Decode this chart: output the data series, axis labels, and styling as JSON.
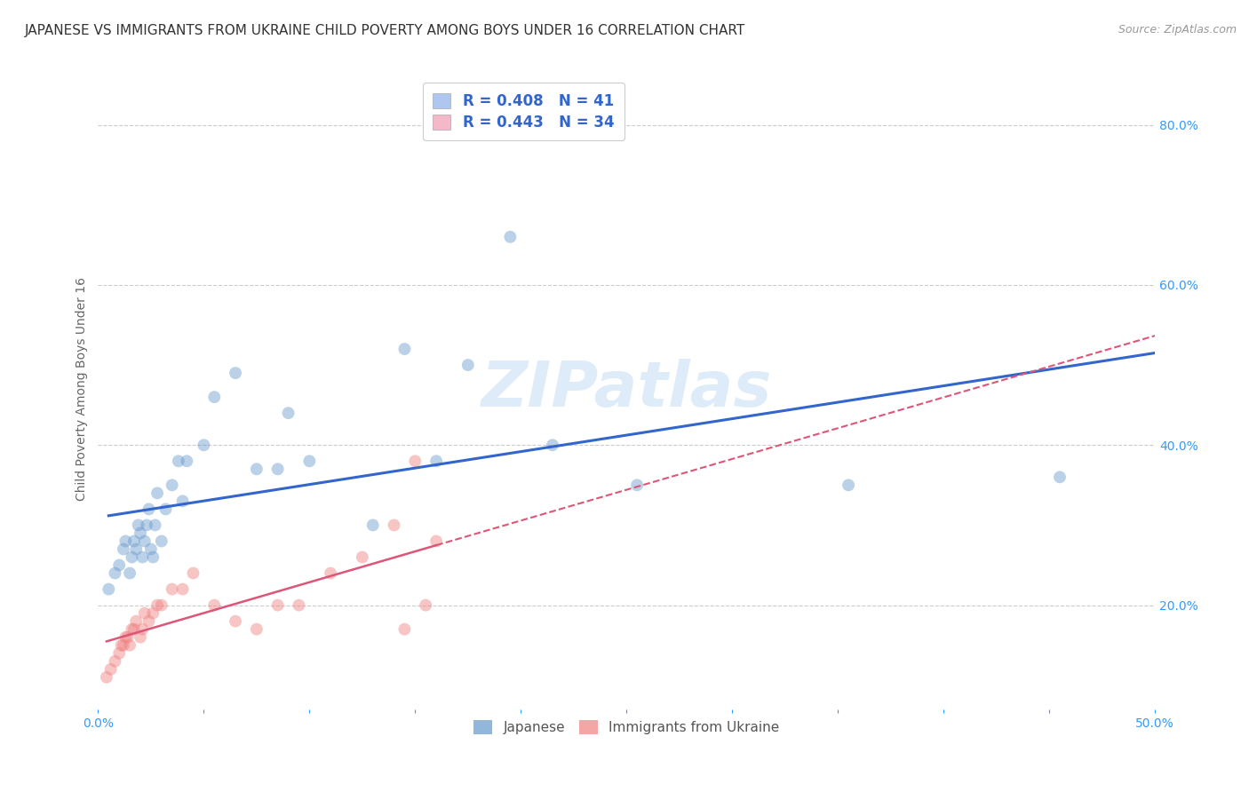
{
  "title": "JAPANESE VS IMMIGRANTS FROM UKRAINE CHILD POVERTY AMONG BOYS UNDER 16 CORRELATION CHART",
  "source": "Source: ZipAtlas.com",
  "ylabel": "Child Poverty Among Boys Under 16",
  "xlim": [
    0.0,
    0.5
  ],
  "ylim": [
    0.07,
    0.87
  ],
  "xticks": [
    0.0,
    0.05,
    0.1,
    0.15,
    0.2,
    0.25,
    0.3,
    0.35,
    0.4,
    0.45,
    0.5
  ],
  "yticks": [
    0.2,
    0.4,
    0.6,
    0.8
  ],
  "watermark": "ZIPatlas",
  "legend_r_entries": [
    {
      "label": "R = 0.408   N = 41",
      "color": "#aec6f0"
    },
    {
      "label": "R = 0.443   N = 34",
      "color": "#f4b8c8"
    }
  ],
  "japanese_x": [
    0.005,
    0.008,
    0.01,
    0.012,
    0.013,
    0.015,
    0.016,
    0.017,
    0.018,
    0.019,
    0.02,
    0.021,
    0.022,
    0.023,
    0.024,
    0.025,
    0.026,
    0.027,
    0.028,
    0.03,
    0.032,
    0.035,
    0.038,
    0.04,
    0.042,
    0.05,
    0.055,
    0.065,
    0.075,
    0.085,
    0.09,
    0.1,
    0.13,
    0.145,
    0.16,
    0.175,
    0.195,
    0.215,
    0.255,
    0.355,
    0.455
  ],
  "japanese_y": [
    0.22,
    0.24,
    0.25,
    0.27,
    0.28,
    0.24,
    0.26,
    0.28,
    0.27,
    0.3,
    0.29,
    0.26,
    0.28,
    0.3,
    0.32,
    0.27,
    0.26,
    0.3,
    0.34,
    0.28,
    0.32,
    0.35,
    0.38,
    0.33,
    0.38,
    0.4,
    0.46,
    0.49,
    0.37,
    0.37,
    0.44,
    0.38,
    0.3,
    0.52,
    0.38,
    0.5,
    0.66,
    0.4,
    0.35,
    0.35,
    0.36
  ],
  "ukraine_x": [
    0.004,
    0.006,
    0.008,
    0.01,
    0.011,
    0.012,
    0.013,
    0.014,
    0.015,
    0.016,
    0.017,
    0.018,
    0.02,
    0.021,
    0.022,
    0.024,
    0.026,
    0.028,
    0.03,
    0.035,
    0.04,
    0.045,
    0.055,
    0.065,
    0.075,
    0.085,
    0.095,
    0.11,
    0.125,
    0.14,
    0.145,
    0.15,
    0.155,
    0.16
  ],
  "ukraine_y": [
    0.11,
    0.12,
    0.13,
    0.14,
    0.15,
    0.15,
    0.16,
    0.16,
    0.15,
    0.17,
    0.17,
    0.18,
    0.16,
    0.17,
    0.19,
    0.18,
    0.19,
    0.2,
    0.2,
    0.22,
    0.22,
    0.24,
    0.2,
    0.18,
    0.17,
    0.2,
    0.2,
    0.24,
    0.26,
    0.3,
    0.17,
    0.38,
    0.2,
    0.28
  ],
  "japanese_color": "#6699cc",
  "ukraine_color": "#f08080",
  "japanese_line_color": "#3366cc",
  "ukraine_line_color": "#dd5577",
  "bg_color": "#ffffff",
  "grid_color": "#cccccc",
  "title_fontsize": 11,
  "axis_label_fontsize": 10,
  "tick_fontsize": 10,
  "marker_size": 100,
  "marker_alpha": 0.45
}
